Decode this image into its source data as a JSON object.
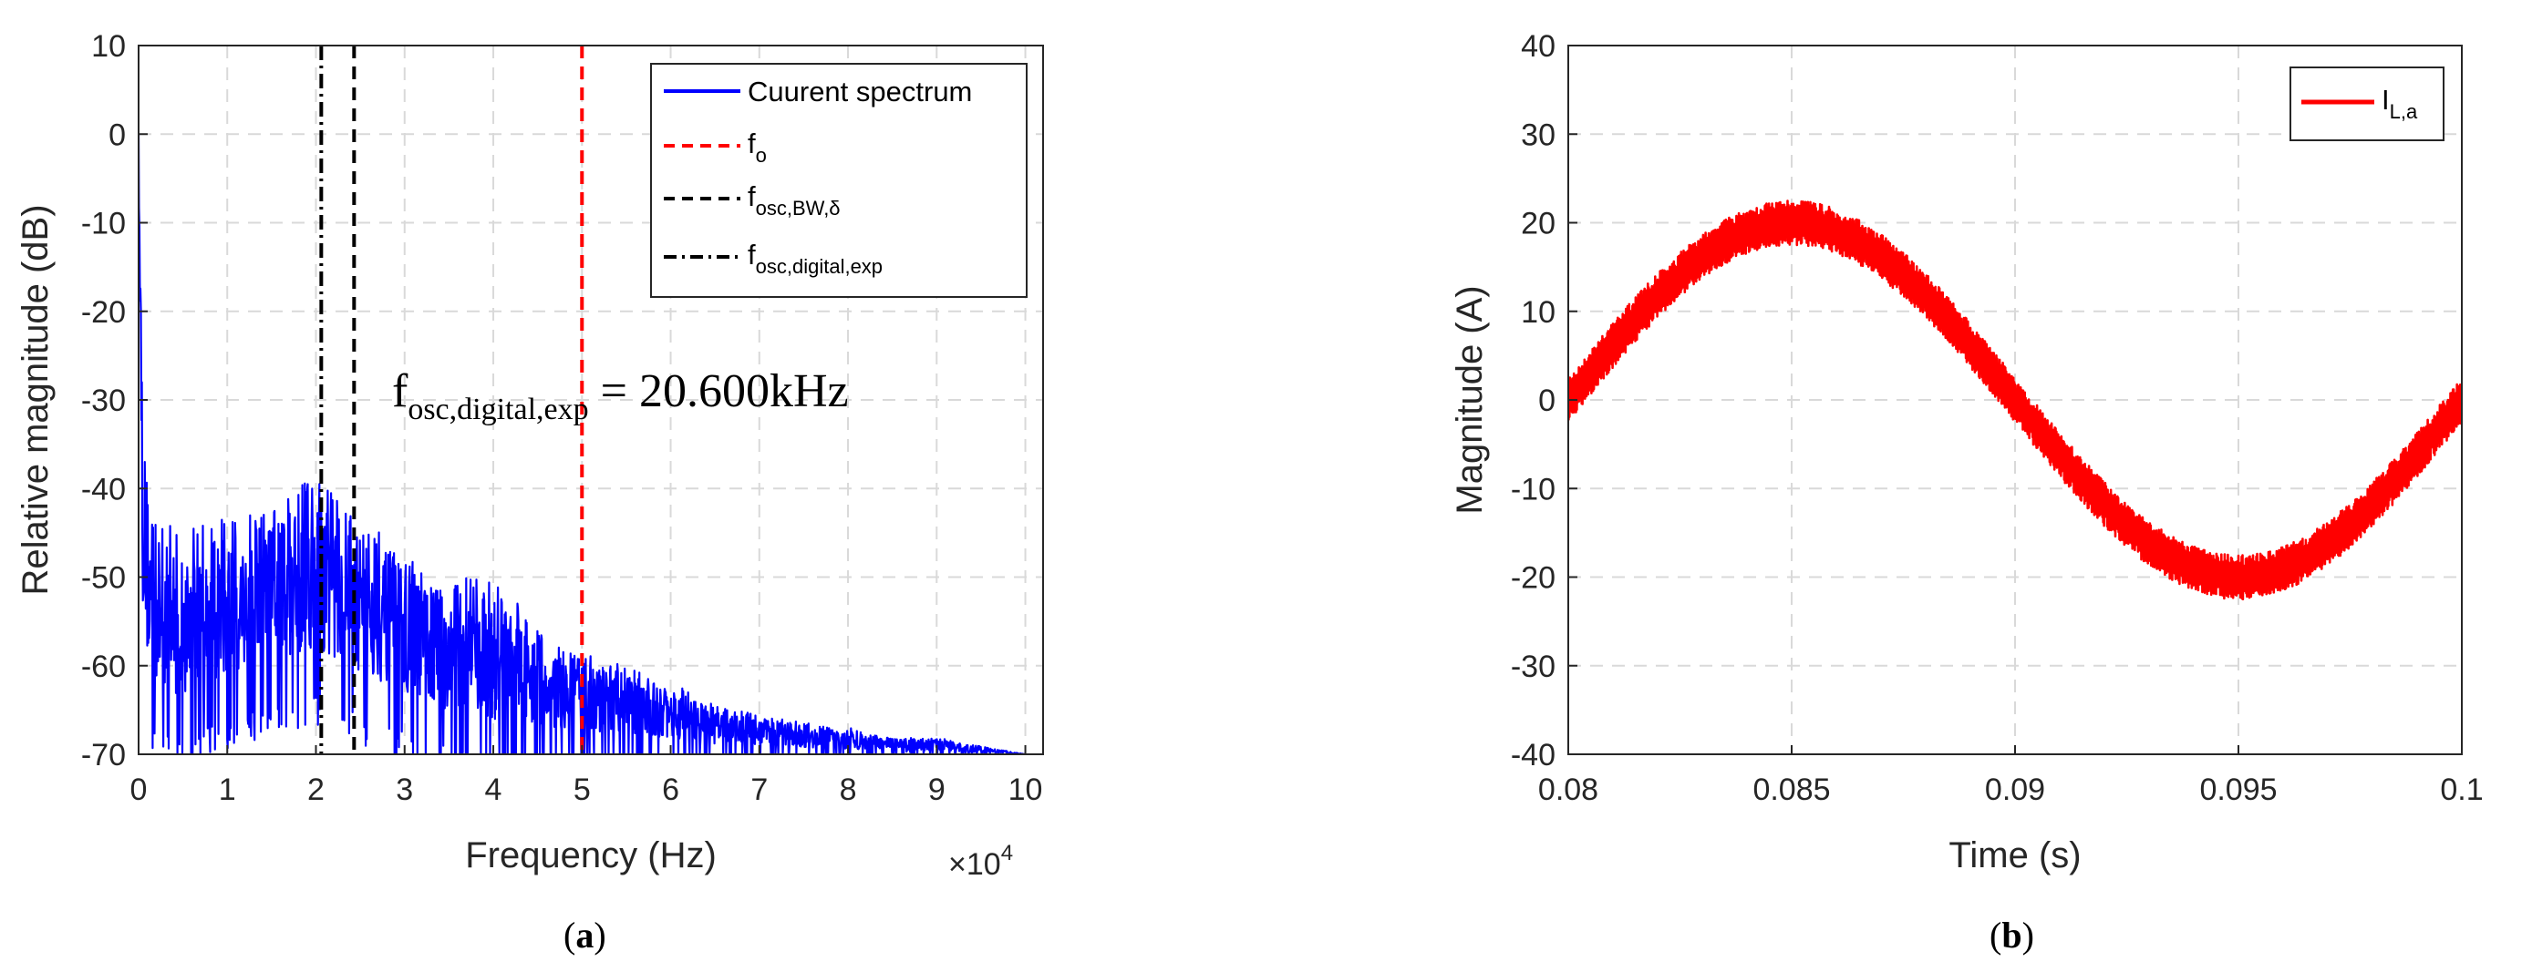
{
  "chart_data": [
    {
      "id": "a",
      "type": "line",
      "caption": {
        "open": "(",
        "letter": "a",
        "close": ")"
      },
      "xlabel": "Frequency (Hz)",
      "ylabel": "Relative magnitude  (dB)",
      "x_exponent": {
        "base": "×10",
        "power": "4"
      },
      "xlim": [
        0,
        10.2
      ],
      "ylim": [
        -70,
        10
      ],
      "x_ticks": [
        0,
        1,
        2,
        3,
        4,
        5,
        6,
        7,
        8,
        9,
        10
      ],
      "x_tick_labels": [
        "0",
        "1",
        "2",
        "3",
        "4",
        "5",
        "6",
        "7",
        "8",
        "9",
        "10"
      ],
      "y_ticks": [
        -70,
        -60,
        -50,
        -40,
        -30,
        -20,
        -10,
        0,
        10
      ],
      "y_tick_labels": [
        "-70",
        "-60",
        "-50",
        "-40",
        "-30",
        "-20",
        "-10",
        "0",
        "10"
      ],
      "grid": true,
      "legend_position": "top-right",
      "annotation": {
        "base": "f",
        "sub": "osc,digital,exp",
        "rest": " = 20.600kHz"
      },
      "series": [
        {
          "name": "Cuurent spectrum",
          "style": "solid",
          "color": "#0000ff",
          "envelope": {
            "x": [
              0,
              0.05,
              0.15,
              0.5,
              1.0,
              1.5,
              2.0,
              2.5,
              3.0,
              3.5,
              4.0,
              4.5,
              5.0,
              5.5,
              6.0,
              6.5,
              7.0,
              7.5,
              8.0,
              8.5,
              9.0,
              9.5,
              10.0
            ],
            "upper_db": [
              0,
              -30,
              -43,
              -45,
              -43,
              -41,
              -38,
              -44,
              -46,
              -50,
              -50,
              -55,
              -58,
              -60,
              -62,
              -64,
              -65,
              -66,
              -67,
              -68,
              -68,
              -69,
              -70
            ],
            "center_db": [
              0,
              -45,
              -52,
              -54,
              -52,
              -50,
              -48,
              -52,
              -55,
              -58,
              -59,
              -61,
              -63,
              -64,
              -66,
              -67,
              -68,
              -69,
              -69,
              -70,
              -70,
              -70,
              -70
            ],
            "lower_db": [
              0,
              -62,
              -67,
              -68,
              -66,
              -64,
              -63,
              -65,
              -67,
              -69,
              -70,
              -70,
              -70,
              -70,
              -70,
              -70,
              -70,
              -70,
              -70,
              -70,
              -70,
              -70,
              -70
            ]
          }
        },
        {
          "name": "f",
          "sub": "o",
          "style": "dashed",
          "color": "#ff0000",
          "x_position": 5.0
        },
        {
          "name": "f",
          "sub": "osc,BW,δ",
          "style": "dashed",
          "color": "#000000",
          "x_position": 2.43
        },
        {
          "name": "f",
          "sub": "osc,digital,exp",
          "style": "dashdot",
          "color": "#000000",
          "x_position": 2.06
        }
      ]
    },
    {
      "id": "b",
      "type": "line",
      "caption": {
        "open": "(",
        "letter": "b",
        "close": ")"
      },
      "xlabel": "Time (s)",
      "ylabel": "Magnitude (A)",
      "xlim": [
        0.08,
        0.1
      ],
      "ylim": [
        -40,
        40
      ],
      "x_ticks": [
        0.08,
        0.085,
        0.09,
        0.095,
        0.1
      ],
      "x_tick_labels": [
        "0.08",
        "0.085",
        "0.09",
        "0.095",
        "0.1"
      ],
      "y_ticks": [
        -40,
        -30,
        -20,
        -10,
        0,
        10,
        20,
        30,
        40
      ],
      "y_tick_labels": [
        "-40",
        "-30",
        "-20",
        "-10",
        "0",
        "10",
        "20",
        "30",
        "40"
      ],
      "grid": true,
      "legend_position": "top-right",
      "series": [
        {
          "name": "I",
          "sub": "L,a",
          "style": "solid",
          "color": "#ff0000",
          "amplitude_a": 20,
          "frequency_hz": 50,
          "ripple_a": 2.5,
          "t_start": 0.08,
          "t_end": 0.1
        }
      ]
    }
  ]
}
